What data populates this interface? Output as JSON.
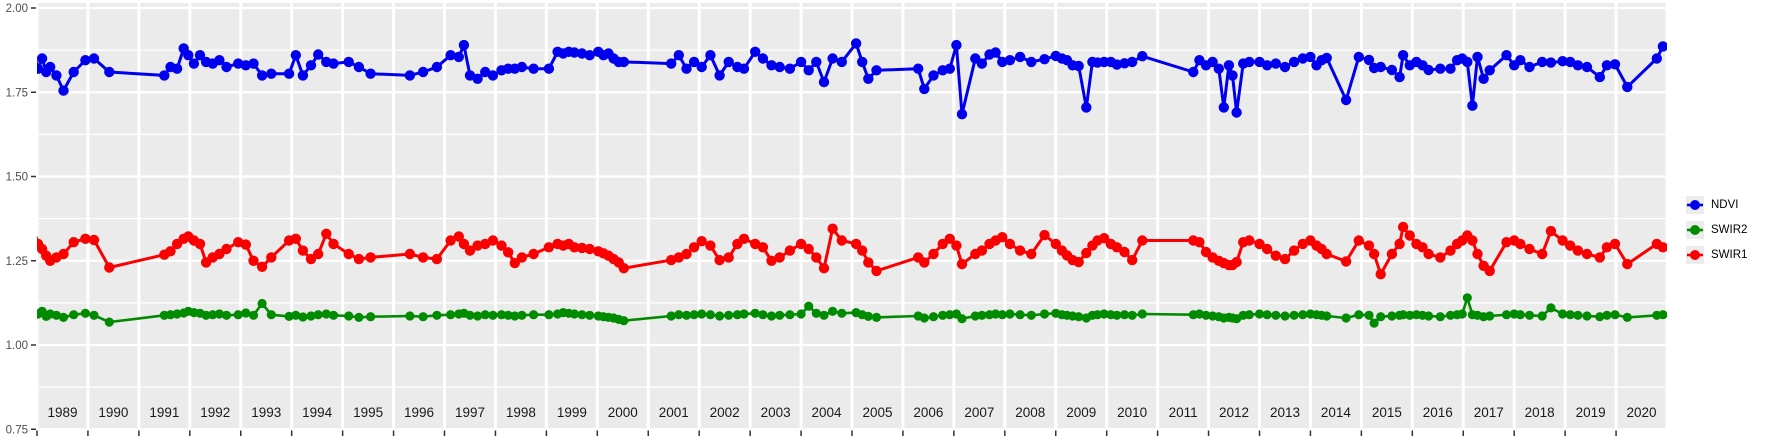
{
  "figure": {
    "kind": "time-series-plot",
    "background": "#FFFFFF",
    "panel_background": "#EBEBEB",
    "grid_color": "#FFFFFF",
    "axis_text_color": "#4D4D4D",
    "year_label_color": "#1A1A1A",
    "tick_color": "#333333"
  },
  "legend": {
    "position": "right",
    "key_background": "#ECECEC",
    "items": [
      {
        "label": "NDVI",
        "color": "#0000EE",
        "symbol": "point-with-line"
      },
      {
        "label": "SWIR2",
        "color": "#008B00",
        "symbol": "point-with-line"
      },
      {
        "label": "SWIR1",
        "color": "#FB0000",
        "symbol": "point-with-line"
      }
    ]
  },
  "chart_data": {
    "type": "line",
    "title": "",
    "xlabel": "",
    "ylabel": "",
    "grid": "on",
    "legend_position": "right",
    "xlim": [
      1988.9,
      2021.0
    ],
    "ylim": [
      0.75,
      2.0
    ],
    "y_ticks": [
      {
        "label": "2.00",
        "value": 2.0
      },
      {
        "label": "1.75",
        "value": 1.75
      },
      {
        "label": "1.50",
        "value": 1.5
      },
      {
        "label": "1.25",
        "value": 1.25
      },
      {
        "label": "1.00",
        "value": 1.0
      },
      {
        "label": "0.75",
        "value": 0.75
      }
    ],
    "y_minor_ticks": [
      1.875,
      1.625,
      1.375,
      1.125,
      0.875
    ],
    "x_tick_years": [
      1989,
      1990,
      1991,
      1992,
      1993,
      1994,
      1995,
      1996,
      1997,
      1998,
      1999,
      2000,
      2001,
      2002,
      2003,
      2004,
      2005,
      2006,
      2007,
      2008,
      2009,
      2010,
      2011,
      2012,
      2013,
      2014,
      2015,
      2016,
      2017,
      2018,
      2019,
      2020
    ],
    "year_labels": [
      "1989",
      "1990",
      "1991",
      "1992",
      "1993",
      "1994",
      "1995",
      "1996",
      "1997",
      "1998",
      "1999",
      "2000",
      "2001",
      "2002",
      "2003",
      "2004",
      "2005",
      "2006",
      "2007",
      "2008",
      "2009",
      "2010",
      "2011",
      "2012",
      "2013",
      "2014",
      "2015",
      "2016",
      "2017",
      "2018",
      "2019",
      "2020"
    ],
    "series": [
      {
        "name": "NDVI",
        "color": "#0000EE",
        "column": 1
      },
      {
        "name": "SWIR2",
        "color": "#008B00",
        "column": 2
      },
      {
        "name": "SWIR1",
        "color": "#FB0000",
        "column": 3
      }
    ],
    "point_columns": [
      "x_decimal_year",
      "NDVI",
      "SWIR2",
      "SWIR1"
    ],
    "points": [
      [
        1988.92,
        1.835,
        1.095,
        1.315
      ],
      [
        1989.02,
        1.82,
        1.092,
        1.3
      ],
      [
        1989.1,
        1.85,
        1.1,
        1.285
      ],
      [
        1989.18,
        1.81,
        1.085,
        1.265
      ],
      [
        1989.26,
        1.825,
        1.092,
        1.25
      ],
      [
        1989.38,
        1.8,
        1.088,
        1.26
      ],
      [
        1989.52,
        1.755,
        1.082,
        1.27
      ],
      [
        1989.72,
        1.81,
        1.09,
        1.305
      ],
      [
        1989.95,
        1.845,
        1.094,
        1.315
      ],
      [
        1990.12,
        1.85,
        1.088,
        1.312
      ],
      [
        1990.42,
        1.81,
        1.068,
        1.23
      ],
      [
        1991.5,
        1.8,
        1.088,
        1.268
      ],
      [
        1991.62,
        1.825,
        1.09,
        1.278
      ],
      [
        1991.75,
        1.82,
        1.092,
        1.3
      ],
      [
        1991.88,
        1.88,
        1.095,
        1.315
      ],
      [
        1991.97,
        1.86,
        1.1,
        1.322
      ],
      [
        1992.08,
        1.835,
        1.096,
        1.31
      ],
      [
        1992.2,
        1.86,
        1.094,
        1.3
      ],
      [
        1992.32,
        1.84,
        1.088,
        1.245
      ],
      [
        1992.45,
        1.835,
        1.09,
        1.26
      ],
      [
        1992.58,
        1.845,
        1.092,
        1.27
      ],
      [
        1992.72,
        1.825,
        1.088,
        1.285
      ],
      [
        1992.95,
        1.835,
        1.09,
        1.305
      ],
      [
        1993.1,
        1.83,
        1.095,
        1.298
      ],
      [
        1993.25,
        1.835,
        1.088,
        1.25
      ],
      [
        1993.42,
        1.8,
        1.123,
        1.232
      ],
      [
        1993.6,
        1.805,
        1.09,
        1.26
      ],
      [
        1993.95,
        1.805,
        1.085,
        1.31
      ],
      [
        1994.08,
        1.86,
        1.088,
        1.315
      ],
      [
        1994.22,
        1.8,
        1.083,
        1.28
      ],
      [
        1994.38,
        1.83,
        1.086,
        1.255
      ],
      [
        1994.52,
        1.862,
        1.09,
        1.27
      ],
      [
        1994.68,
        1.84,
        1.092,
        1.33
      ],
      [
        1994.82,
        1.835,
        1.088,
        1.3
      ],
      [
        1995.12,
        1.84,
        1.086,
        1.27
      ],
      [
        1995.32,
        1.825,
        1.082,
        1.255
      ],
      [
        1995.55,
        1.805,
        1.084,
        1.26
      ],
      [
        1996.32,
        1.8,
        1.086,
        1.27
      ],
      [
        1996.58,
        1.81,
        1.084,
        1.26
      ],
      [
        1996.85,
        1.825,
        1.088,
        1.255
      ],
      [
        1997.12,
        1.86,
        1.09,
        1.31
      ],
      [
        1997.28,
        1.855,
        1.092,
        1.322
      ],
      [
        1997.38,
        1.89,
        1.094,
        1.3
      ],
      [
        1997.5,
        1.8,
        1.088,
        1.28
      ],
      [
        1997.65,
        1.79,
        1.086,
        1.295
      ],
      [
        1997.8,
        1.81,
        1.09,
        1.3
      ],
      [
        1997.95,
        1.8,
        1.088,
        1.31
      ],
      [
        1998.12,
        1.815,
        1.09,
        1.295
      ],
      [
        1998.25,
        1.82,
        1.088,
        1.275
      ],
      [
        1998.38,
        1.82,
        1.086,
        1.243
      ],
      [
        1998.52,
        1.825,
        1.088,
        1.26
      ],
      [
        1998.75,
        1.82,
        1.09,
        1.27
      ],
      [
        1999.05,
        1.82,
        1.09,
        1.29
      ],
      [
        1999.22,
        1.87,
        1.092,
        1.3
      ],
      [
        1999.33,
        1.865,
        1.096,
        1.295
      ],
      [
        1999.44,
        1.87,
        1.094,
        1.3
      ],
      [
        1999.55,
        1.868,
        1.092,
        1.29
      ],
      [
        1999.7,
        1.865,
        1.09,
        1.288
      ],
      [
        1999.85,
        1.86,
        1.088,
        1.285
      ],
      [
        2000.02,
        1.87,
        1.086,
        1.278
      ],
      [
        2000.12,
        1.86,
        1.084,
        1.272
      ],
      [
        2000.22,
        1.865,
        1.082,
        1.265
      ],
      [
        2000.32,
        1.85,
        1.08,
        1.255
      ],
      [
        2000.42,
        1.84,
        1.076,
        1.245
      ],
      [
        2000.52,
        1.84,
        1.072,
        1.228
      ],
      [
        2001.45,
        1.835,
        1.086,
        1.252
      ],
      [
        2001.6,
        1.86,
        1.09,
        1.26
      ],
      [
        2001.75,
        1.82,
        1.088,
        1.27
      ],
      [
        2001.9,
        1.84,
        1.09,
        1.29
      ],
      [
        2002.05,
        1.825,
        1.092,
        1.308
      ],
      [
        2002.22,
        1.86,
        1.09,
        1.295
      ],
      [
        2002.4,
        1.8,
        1.086,
        1.252
      ],
      [
        2002.58,
        1.84,
        1.088,
        1.26
      ],
      [
        2002.75,
        1.825,
        1.09,
        1.3
      ],
      [
        2002.88,
        1.82,
        1.092,
        1.315
      ],
      [
        2003.1,
        1.87,
        1.094,
        1.3
      ],
      [
        2003.25,
        1.85,
        1.09,
        1.29
      ],
      [
        2003.42,
        1.83,
        1.086,
        1.25
      ],
      [
        2003.58,
        1.825,
        1.088,
        1.26
      ],
      [
        2003.78,
        1.82,
        1.09,
        1.28
      ],
      [
        2004.0,
        1.84,
        1.092,
        1.3
      ],
      [
        2004.15,
        1.815,
        1.115,
        1.285
      ],
      [
        2004.3,
        1.84,
        1.094,
        1.26
      ],
      [
        2004.45,
        1.78,
        1.088,
        1.228
      ],
      [
        2004.62,
        1.85,
        1.1,
        1.345
      ],
      [
        2004.8,
        1.84,
        1.094,
        1.31
      ],
      [
        2005.08,
        1.895,
        1.096,
        1.3
      ],
      [
        2005.2,
        1.84,
        1.09,
        1.28
      ],
      [
        2005.32,
        1.79,
        1.085,
        1.245
      ],
      [
        2005.48,
        1.815,
        1.082,
        1.22
      ],
      [
        2006.3,
        1.82,
        1.086,
        1.26
      ],
      [
        2006.42,
        1.76,
        1.08,
        1.245
      ],
      [
        2006.6,
        1.8,
        1.084,
        1.27
      ],
      [
        2006.78,
        1.815,
        1.088,
        1.3
      ],
      [
        2006.92,
        1.82,
        1.09,
        1.315
      ],
      [
        2007.05,
        1.89,
        1.092,
        1.295
      ],
      [
        2007.16,
        1.685,
        1.078,
        1.24
      ],
      [
        2007.42,
        1.85,
        1.086,
        1.27
      ],
      [
        2007.55,
        1.835,
        1.088,
        1.28
      ],
      [
        2007.7,
        1.862,
        1.09,
        1.3
      ],
      [
        2007.82,
        1.868,
        1.092,
        1.31
      ],
      [
        2007.95,
        1.84,
        1.09,
        1.32
      ],
      [
        2008.1,
        1.845,
        1.092,
        1.3
      ],
      [
        2008.3,
        1.855,
        1.09,
        1.28
      ],
      [
        2008.52,
        1.84,
        1.088,
        1.27
      ],
      [
        2008.78,
        1.848,
        1.092,
        1.326
      ],
      [
        2009.0,
        1.858,
        1.094,
        1.3
      ],
      [
        2009.12,
        1.85,
        1.09,
        1.28
      ],
      [
        2009.22,
        1.845,
        1.088,
        1.266
      ],
      [
        2009.33,
        1.83,
        1.086,
        1.252
      ],
      [
        2009.45,
        1.828,
        1.084,
        1.246
      ],
      [
        2009.6,
        1.705,
        1.08,
        1.273
      ],
      [
        2009.72,
        1.84,
        1.088,
        1.295
      ],
      [
        2009.82,
        1.838,
        1.09,
        1.31
      ],
      [
        2009.95,
        1.84,
        1.092,
        1.317
      ],
      [
        2010.08,
        1.84,
        1.09,
        1.3
      ],
      [
        2010.2,
        1.832,
        1.088,
        1.29
      ],
      [
        2010.35,
        1.836,
        1.09,
        1.276
      ],
      [
        2010.5,
        1.84,
        1.088,
        1.252
      ],
      [
        2010.7,
        1.857,
        1.092,
        1.31
      ],
      [
        2011.7,
        1.81,
        1.09,
        1.31
      ],
      [
        2011.82,
        1.845,
        1.092,
        1.305
      ],
      [
        2011.95,
        1.83,
        1.088,
        1.276
      ],
      [
        2012.08,
        1.84,
        1.086,
        1.26
      ],
      [
        2012.2,
        1.82,
        1.084,
        1.25
      ],
      [
        2012.3,
        1.705,
        1.08,
        1.243
      ],
      [
        2012.4,
        1.83,
        1.082,
        1.237
      ],
      [
        2012.47,
        1.8,
        1.08,
        1.237
      ],
      [
        2012.55,
        1.69,
        1.078,
        1.246
      ],
      [
        2012.68,
        1.835,
        1.088,
        1.305
      ],
      [
        2012.8,
        1.84,
        1.09,
        1.31
      ],
      [
        2013.0,
        1.84,
        1.092,
        1.3
      ],
      [
        2013.15,
        1.83,
        1.09,
        1.285
      ],
      [
        2013.32,
        1.835,
        1.088,
        1.265
      ],
      [
        2013.5,
        1.825,
        1.086,
        1.255
      ],
      [
        2013.68,
        1.84,
        1.088,
        1.28
      ],
      [
        2013.85,
        1.85,
        1.09,
        1.3
      ],
      [
        2014.0,
        1.855,
        1.092,
        1.31
      ],
      [
        2014.12,
        1.83,
        1.09,
        1.295
      ],
      [
        2014.22,
        1.845,
        1.088,
        1.285
      ],
      [
        2014.32,
        1.852,
        1.086,
        1.27
      ],
      [
        2014.7,
        1.727,
        1.08,
        1.248
      ],
      [
        2014.95,
        1.855,
        1.09,
        1.31
      ],
      [
        2015.15,
        1.846,
        1.088,
        1.295
      ],
      [
        2015.25,
        1.822,
        1.065,
        1.27
      ],
      [
        2015.38,
        1.825,
        1.084,
        1.21
      ],
      [
        2015.6,
        1.816,
        1.086,
        1.27
      ],
      [
        2015.75,
        1.795,
        1.088,
        1.3
      ],
      [
        2015.82,
        1.86,
        1.09,
        1.35
      ],
      [
        2015.95,
        1.83,
        1.088,
        1.325
      ],
      [
        2016.08,
        1.84,
        1.09,
        1.3
      ],
      [
        2016.2,
        1.83,
        1.088,
        1.29
      ],
      [
        2016.32,
        1.816,
        1.086,
        1.27
      ],
      [
        2016.55,
        1.82,
        1.084,
        1.26
      ],
      [
        2016.75,
        1.82,
        1.088,
        1.28
      ],
      [
        2016.88,
        1.845,
        1.09,
        1.3
      ],
      [
        2016.98,
        1.85,
        1.092,
        1.31
      ],
      [
        2017.08,
        1.84,
        1.14,
        1.325
      ],
      [
        2017.18,
        1.71,
        1.09,
        1.31
      ],
      [
        2017.28,
        1.855,
        1.088,
        1.27
      ],
      [
        2017.4,
        1.79,
        1.084,
        1.235
      ],
      [
        2017.52,
        1.815,
        1.086,
        1.22
      ],
      [
        2017.85,
        1.86,
        1.09,
        1.305
      ],
      [
        2018.0,
        1.83,
        1.092,
        1.31
      ],
      [
        2018.12,
        1.845,
        1.09,
        1.3
      ],
      [
        2018.3,
        1.825,
        1.088,
        1.285
      ],
      [
        2018.55,
        1.84,
        1.086,
        1.27
      ],
      [
        2018.72,
        1.838,
        1.11,
        1.338
      ],
      [
        2018.95,
        1.842,
        1.092,
        1.31
      ],
      [
        2019.1,
        1.84,
        1.09,
        1.295
      ],
      [
        2019.25,
        1.83,
        1.088,
        1.28
      ],
      [
        2019.43,
        1.825,
        1.086,
        1.27
      ],
      [
        2019.68,
        1.795,
        1.084,
        1.26
      ],
      [
        2019.82,
        1.83,
        1.088,
        1.29
      ],
      [
        2019.98,
        1.833,
        1.09,
        1.3
      ],
      [
        2020.22,
        1.766,
        1.082,
        1.24
      ],
      [
        2020.8,
        1.85,
        1.088,
        1.3
      ],
      [
        2020.92,
        1.886,
        1.09,
        1.29
      ]
    ]
  }
}
